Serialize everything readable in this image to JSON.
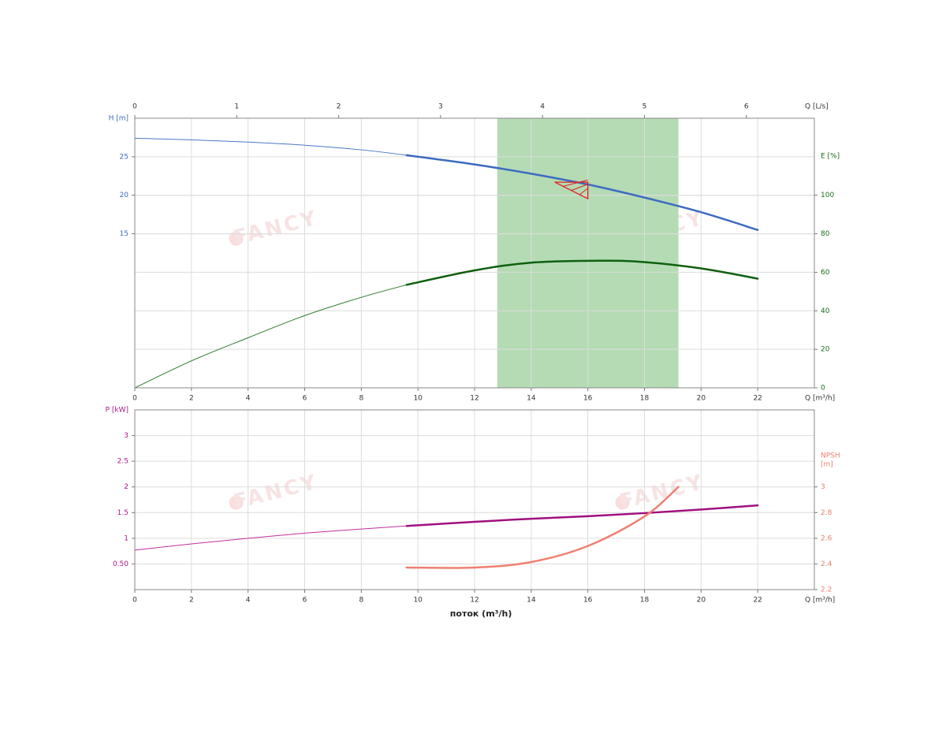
{
  "watermark": "FANCY",
  "chart_data": [
    {
      "type": "line",
      "xlabel": "Q [m³/h]",
      "x2label": "Q [L/s]",
      "ylabel": "H [m]",
      "y2label": [
        "E [%]"
      ],
      "xlim": [
        0,
        24
      ],
      "xticks": [
        0,
        2,
        4,
        6,
        8,
        10,
        12,
        14,
        16,
        18,
        20,
        22
      ],
      "x2lim": [
        0,
        6.667
      ],
      "x2ticks": [
        0,
        1,
        2,
        3,
        4,
        5,
        6
      ],
      "ylim": [
        -5,
        30
      ],
      "yticks": [
        15,
        20,
        25
      ],
      "ycolor": "#3d6cc0",
      "y2lim": [
        0,
        140
      ],
      "y2ticks": [
        0,
        20,
        40,
        60,
        80,
        100
      ],
      "y2color": "#1a6e1a",
      "band": [
        12.8,
        19.2
      ],
      "band_color": "#b4dbb4",
      "operating_point": {
        "x": 16,
        "y": 21.7,
        "color": "#e02020"
      },
      "grid": true,
      "series": [
        {
          "color": "#4a78c8",
          "linewidth": 1,
          "axis": "y",
          "x": [
            0,
            2,
            4,
            6,
            8,
            9.6
          ],
          "values": [
            27.4,
            27.2,
            26.9,
            26.5,
            25.9,
            25.2
          ]
        },
        {
          "color": "#3d6cc0",
          "linewidth": 2.5,
          "axis": "y",
          "x": [
            9.6,
            12,
            14,
            16,
            18,
            20,
            22
          ],
          "values": [
            25.2,
            24.0,
            22.8,
            21.4,
            19.7,
            17.8,
            15.5
          ]
        },
        {
          "color": "#2a7a2a",
          "linewidth": 1,
          "axis": "y2",
          "x": [
            0,
            2,
            4,
            6,
            8,
            9.6
          ],
          "values": [
            0,
            14,
            26,
            37.5,
            47,
            53.5
          ]
        },
        {
          "color": "#0f600f",
          "linewidth": 2.5,
          "axis": "y2",
          "x": [
            9.6,
            12,
            14,
            16.5,
            18,
            20,
            22
          ],
          "values": [
            53.5,
            61,
            65,
            66,
            65.3,
            62,
            56.7
          ]
        }
      ]
    },
    {
      "type": "line",
      "xlabel": "Q [m³/h]",
      "title": "поток (m³/h)",
      "ylabel": "P [kW]",
      "y2label": [
        "NPSH",
        "[m]"
      ],
      "xlim": [
        0,
        24
      ],
      "xticks": [
        0,
        2,
        4,
        6,
        8,
        10,
        12,
        14,
        16,
        18,
        20,
        22
      ],
      "ylim": [
        0,
        3.5
      ],
      "yticks": [
        {
          "value": 0.5,
          "label": "0.50"
        },
        1,
        1.5,
        2,
        2.5,
        3
      ],
      "ycolor": "#b0148c",
      "y2lim": [
        2.2,
        3.6
      ],
      "y2ticks": [
        2.2,
        2.4,
        2.6,
        2.8,
        3
      ],
      "y2color": "#e8806e",
      "grid": true,
      "series": [
        {
          "color": "#c030a0",
          "linewidth": 1,
          "axis": "y",
          "x": [
            0,
            2,
            4,
            6,
            8,
            9.6
          ],
          "values": [
            0.77,
            0.89,
            1.0,
            1.1,
            1.18,
            1.24
          ]
        },
        {
          "color": "#a0107e",
          "linewidth": 2.5,
          "axis": "y",
          "x": [
            9.6,
            12,
            14,
            16,
            18,
            20,
            22
          ],
          "values": [
            1.24,
            1.32,
            1.38,
            1.43,
            1.49,
            1.56,
            1.64
          ]
        },
        {
          "color": "#ee8070",
          "linewidth": 2.5,
          "axis": "y2",
          "x": [
            9.6,
            12,
            14,
            16,
            18,
            19.2
          ],
          "values": [
            2.372,
            2.372,
            2.415,
            2.54,
            2.77,
            3.0
          ]
        }
      ]
    }
  ]
}
